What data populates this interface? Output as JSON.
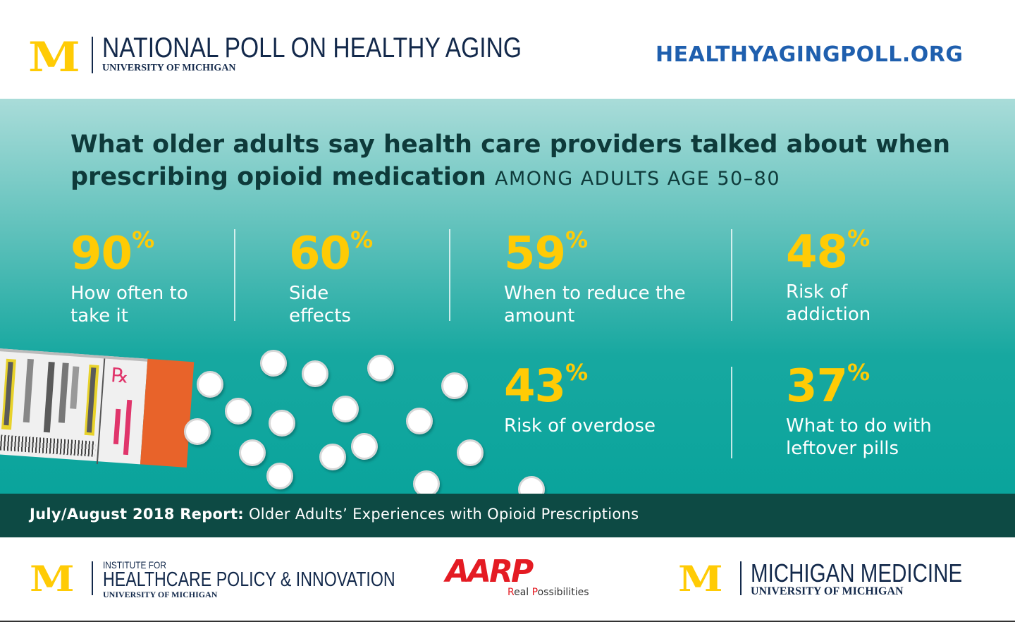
{
  "header": {
    "logo_letter": "M",
    "poll_title": "NATIONAL POLL ON HEALTHY AGING",
    "university": "UNIVERSITY OF MICHIGAN",
    "url": "HEALTHYAGINGPOLL.ORG"
  },
  "main": {
    "title": "What older adults say health care providers talked about when prescribing opioid medication",
    "subtitle": "AMONG ADULTS AGE 50–80",
    "rx_symbol": "℞",
    "stats": [
      {
        "value": "90",
        "unit": "%",
        "label": "How often to take it"
      },
      {
        "value": "60",
        "unit": "%",
        "label": "Side effects"
      },
      {
        "value": "59",
        "unit": "%",
        "label": "When to reduce the amount"
      },
      {
        "value": "48",
        "unit": "%",
        "label": "Risk of addiction"
      },
      {
        "value": "43",
        "unit": "%",
        "label": "Risk of overdose"
      },
      {
        "value": "37",
        "unit": "%",
        "label": "What to do with leftover pills"
      }
    ]
  },
  "banner": {
    "report_label": "July/August 2018 Report:",
    "report_title": "Older Adults’ Experiences with Opioid Prescriptions"
  },
  "footer": {
    "ihpi": {
      "line1": "INSTITUTE FOR",
      "line2": "HEALTHCARE POLICY & INNOVATION",
      "line3": "UNIVERSITY OF MICHIGAN"
    },
    "aarp": {
      "logo": "AARP",
      "tagline_r": "R",
      "tagline_1": "eal ",
      "tagline_p": "P",
      "tagline_2": "ossibilities"
    },
    "michmed": {
      "line1": "MICHIGAN MEDICINE",
      "line2": "UNIVERSITY OF MICHIGAN"
    }
  },
  "colors": {
    "gold": "#ffcb05",
    "navy": "#13294b",
    "teal": "#0aa49c",
    "banner": "#0d4a44",
    "aarp_red": "#e41b23",
    "cap_orange": "#e8632a"
  }
}
